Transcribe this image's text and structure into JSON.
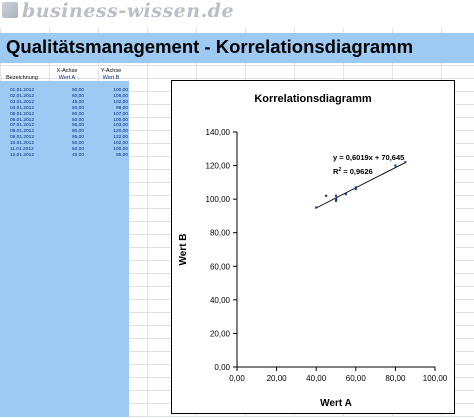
{
  "header": {
    "brand": "business-wissen.de"
  },
  "title": "Qualitätsmanagement - Korrelationsdiagramm",
  "table": {
    "col_headers_top": [
      "",
      "X-Achse",
      "Y-Achse"
    ],
    "col_headers": [
      "Bezeichnung",
      "Wert A",
      "Wert B"
    ],
    "rows": [
      [
        "01.01.2012",
        "50,00",
        "100,00"
      ],
      [
        "02.01.2012",
        "60,00",
        "106,00"
      ],
      [
        "03.01.2012",
        "45,00",
        "102,00"
      ],
      [
        "04.01.2012",
        "50,00",
        "99,00"
      ],
      [
        "05.01.2012",
        "60,00",
        "107,00"
      ],
      [
        "06.01.2012",
        "50,00",
        "100,00"
      ],
      [
        "07.01.2012",
        "55,00",
        "103,00"
      ],
      [
        "08.01.2012",
        "80,00",
        "120,00"
      ],
      [
        "09.01.2012",
        "85,00",
        "122,00"
      ],
      [
        "10.01.2012",
        "50,00",
        "102,00"
      ],
      [
        "11.01.2012",
        "50,00",
        "100,00"
      ],
      [
        "12.01.2012",
        "40,00",
        "95,00"
      ]
    ]
  },
  "chart_data": {
    "type": "scatter",
    "title": "Korrelationsdiagramm",
    "xlabel": "Wert A",
    "ylabel": "Wert B",
    "xlim": [
      0,
      100
    ],
    "ylim": [
      0,
      140
    ],
    "x_ticks": [
      "0,00",
      "20,00",
      "40,00",
      "60,00",
      "80,00",
      "100,00"
    ],
    "y_ticks": [
      "0,00",
      "20,00",
      "40,00",
      "60,00",
      "80,00",
      "100,00",
      "120,00",
      "140,00"
    ],
    "x_tick_values": [
      0,
      20,
      40,
      60,
      80,
      100
    ],
    "y_tick_values": [
      0,
      20,
      40,
      60,
      80,
      100,
      120,
      140
    ],
    "points": [
      {
        "x": 50,
        "y": 100
      },
      {
        "x": 60,
        "y": 106
      },
      {
        "x": 45,
        "y": 102
      },
      {
        "x": 50,
        "y": 99
      },
      {
        "x": 60,
        "y": 107
      },
      {
        "x": 50,
        "y": 100
      },
      {
        "x": 55,
        "y": 103
      },
      {
        "x": 80,
        "y": 120
      },
      {
        "x": 85,
        "y": 122
      },
      {
        "x": 50,
        "y": 102
      },
      {
        "x": 50,
        "y": 100
      },
      {
        "x": 40,
        "y": 95
      }
    ],
    "trendline": {
      "slope": 0.6019,
      "intercept": 70.645,
      "x_range": [
        40,
        85
      ]
    },
    "equation": "y = 0,6019x + 70,645",
    "r2_label": "R",
    "r2_exp": "2",
    "r2_value": " = 0,9626",
    "marker_color": "#1f3f8f",
    "line_color": "#000000",
    "grid": false,
    "legend": "none"
  }
}
